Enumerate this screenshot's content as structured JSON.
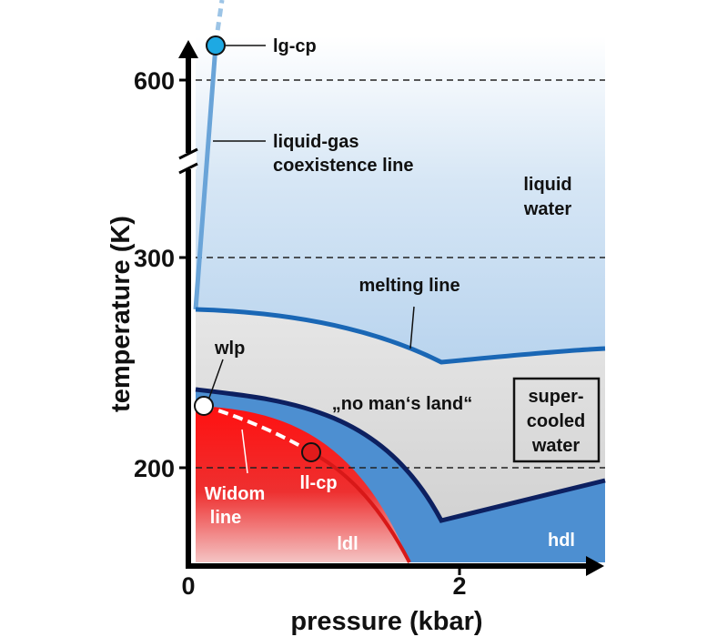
{
  "axes": {
    "xlabel": "pressure (kbar)",
    "ylabel": "temperature (K)",
    "x_ticks": [
      "0",
      "2"
    ],
    "y_ticks": [
      "600",
      "300",
      "200"
    ]
  },
  "labels": {
    "lg_cp": "lg-cp",
    "coexistence": [
      "liquid-gas",
      "coexistence line"
    ],
    "liquid_water": [
      "liquid",
      "water"
    ],
    "melting_line": "melting line",
    "wlp": "wlp",
    "no_mans_land": "„no man‘s land“",
    "supercooled": [
      "super-",
      "cooled",
      "water"
    ],
    "ll_cp": "ll-cp",
    "widom_line": [
      "Widom",
      "line"
    ],
    "ldl": "ldl",
    "hdl": "hdl"
  },
  "colors": {
    "liquid_region": "#cfe0f2",
    "nml_region": "#dcdcdc",
    "hdl_region": "#4d8fd1",
    "ldl_region": "#e82020",
    "melting_line": "#1a67b5",
    "boundary_line": "#0d2060",
    "lg_line": "#6aa4d8",
    "lg_cp_point": "#1ea9e3",
    "ll_cp_point": "#e01b1b"
  }
}
